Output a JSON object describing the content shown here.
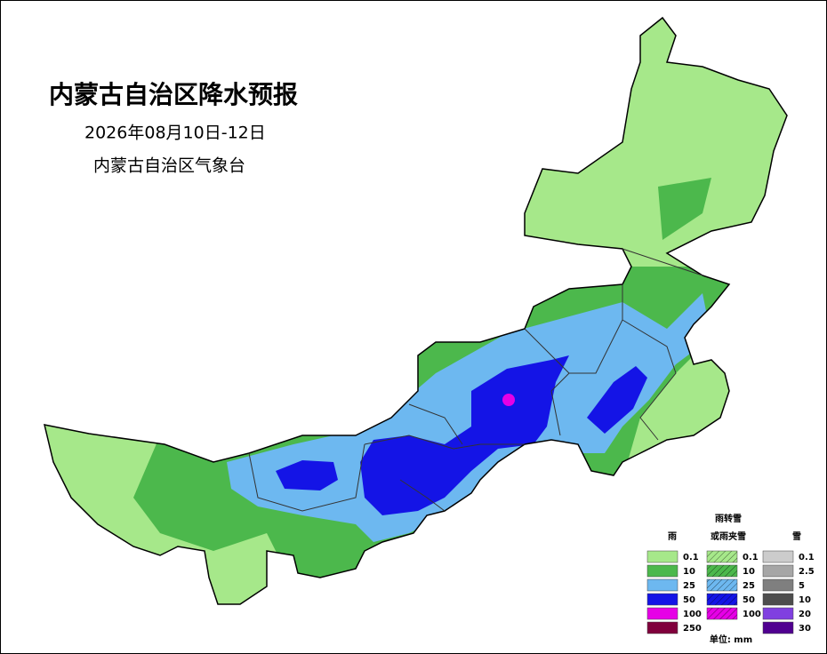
{
  "header": {
    "title": "内蒙古自治区降水预报",
    "date": "2026年08月10日-12日",
    "issuer": "内蒙古自治区气象台"
  },
  "legend": {
    "columns": [
      {
        "title": "雨",
        "items": [
          {
            "label": "0.1",
            "color": "#a6e88a"
          },
          {
            "label": "10",
            "color": "#4cb84c"
          },
          {
            "label": "25",
            "color": "#6db8f0"
          },
          {
            "label": "50",
            "color": "#1414e6"
          },
          {
            "label": "100",
            "color": "#e600e6"
          },
          {
            "label": "250",
            "color": "#80003c"
          }
        ]
      },
      {
        "title": "雨转雪",
        "title2": "或雨夹雪",
        "hatched": true,
        "items": [
          {
            "label": "0.1",
            "color": "#a6e88a"
          },
          {
            "label": "10",
            "color": "#4cb84c"
          },
          {
            "label": "25",
            "color": "#6db8f0"
          },
          {
            "label": "50",
            "color": "#1414e6"
          },
          {
            "label": "100",
            "color": "#e600e6"
          }
        ]
      },
      {
        "title": "雪",
        "items": [
          {
            "label": "0.1",
            "color": "#cccccc"
          },
          {
            "label": "2.5",
            "color": "#a6a6a6"
          },
          {
            "label": "5",
            "color": "#7f7f7f"
          },
          {
            "label": "10",
            "color": "#4d4d4d"
          },
          {
            "label": "20",
            "color": "#8040e0"
          },
          {
            "label": "30",
            "color": "#500090"
          }
        ]
      }
    ],
    "unit": "单位: mm"
  }
}
